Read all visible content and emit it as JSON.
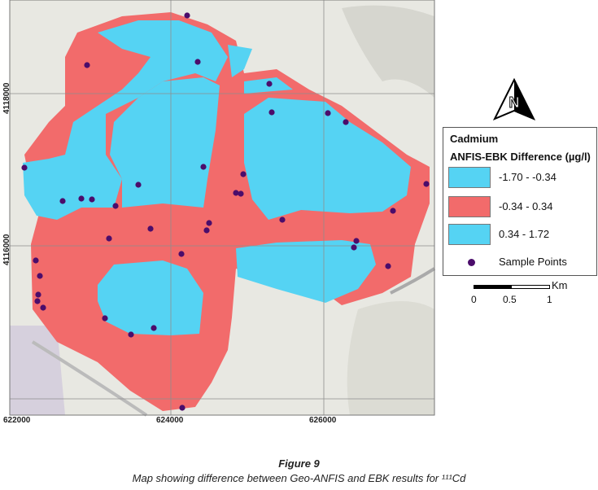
{
  "legend": {
    "title": "Cadmium",
    "subtitle": "ANFIS-EBK Difference (µg/l)",
    "classes": [
      {
        "label": "-1.70 - -0.34",
        "color": "#55d3f3"
      },
      {
        "label": "-0.34 - 0.34",
        "color": "#f26b6b"
      },
      {
        "label": "0.34 - 1.72",
        "color": "#55d3f3"
      }
    ],
    "points_label": "Sample Points",
    "point_color": "#4b0d6b"
  },
  "scalebar": {
    "labels": [
      "0",
      "0.5",
      "1"
    ],
    "unit": "Km"
  },
  "north_arrow": {
    "label": "N"
  },
  "axes": {
    "x_ticks": [
      "622000",
      "624000",
      "626000"
    ],
    "y_ticks": [
      "4118000",
      "4116000"
    ]
  },
  "caption": {
    "title": "Figure 9",
    "text": "Map showing difference between Geo-ANFIS and EBK results for ¹¹¹Cd"
  },
  "colors": {
    "basemap": "#e9e9e4",
    "grid": "#9a9a9a",
    "point": "#4b0d6b"
  }
}
